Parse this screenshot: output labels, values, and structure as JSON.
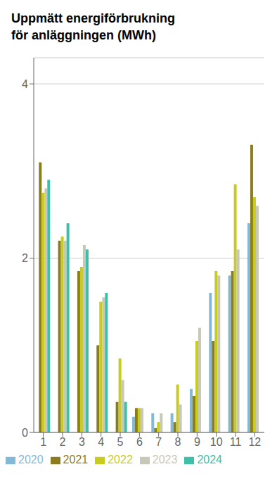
{
  "chart_data": {
    "type": "bar",
    "title": "Uppmätt energiförbrukning\nför anläggningen (MWh)",
    "categories": [
      "1",
      "2",
      "3",
      "4",
      "5",
      "6",
      "7",
      "8",
      "9",
      "10",
      "11",
      "12"
    ],
    "series": [
      {
        "name": "2020",
        "color": "#85b8d4",
        "values": [
          0.0,
          0.0,
          0.0,
          0.0,
          0.0,
          0.18,
          0.22,
          0.22,
          0.5,
          1.6,
          1.8,
          2.4
        ]
      },
      {
        "name": "2021",
        "color": "#8b7d1e",
        "values": [
          3.1,
          2.2,
          1.85,
          1.0,
          0.35,
          0.28,
          0.05,
          0.12,
          0.42,
          1.05,
          1.85,
          3.3
        ]
      },
      {
        "name": "2022",
        "color": "#c8cc1e",
        "values": [
          2.75,
          2.25,
          1.9,
          1.5,
          0.85,
          0.28,
          0.12,
          0.55,
          1.05,
          1.85,
          2.85,
          2.7
        ]
      },
      {
        "name": "2023",
        "color": "#c8c8b8",
        "values": [
          2.8,
          2.2,
          2.15,
          1.55,
          0.6,
          0.28,
          0.22,
          0.32,
          1.2,
          1.8,
          2.1,
          2.6
        ]
      },
      {
        "name": "2024",
        "color": "#3dbfaa",
        "values": [
          2.9,
          2.4,
          2.1,
          1.6,
          0.35,
          0.0,
          0.0,
          0.0,
          0.0,
          0.0,
          0.0,
          0.0
        ]
      }
    ],
    "ylim": [
      0,
      4.3
    ],
    "yticks": [
      0,
      2,
      4
    ],
    "grid": true,
    "legend": "lower left"
  }
}
